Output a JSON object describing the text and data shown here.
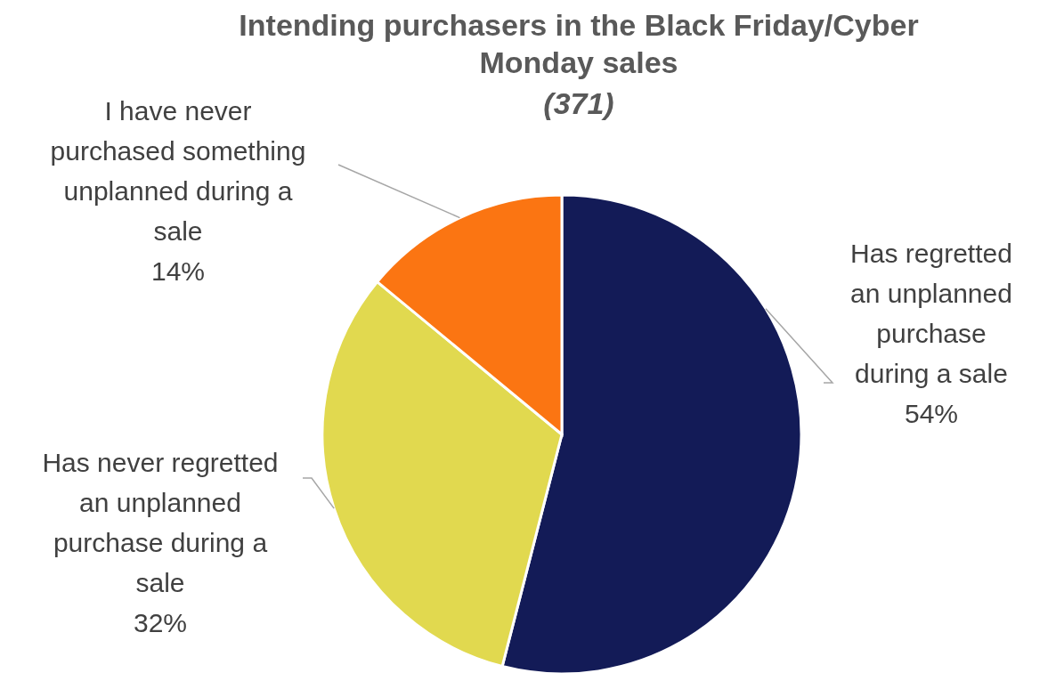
{
  "chart_data": {
    "type": "pie",
    "title": "Intending purchasers in the Black Friday/Cyber Monday sales",
    "subtitle": "(371)",
    "categories": [
      "Has regretted an unplanned purchase during a sale",
      "Has never regretted an unplanned purchase during a sale",
      "I have never purchased something unplanned during a sale"
    ],
    "values": [
      54,
      32,
      14
    ],
    "colors": [
      "#131b57",
      "#e1d94f",
      "#fb7512"
    ],
    "value_labels": [
      "54%",
      "32%",
      "14%"
    ]
  }
}
